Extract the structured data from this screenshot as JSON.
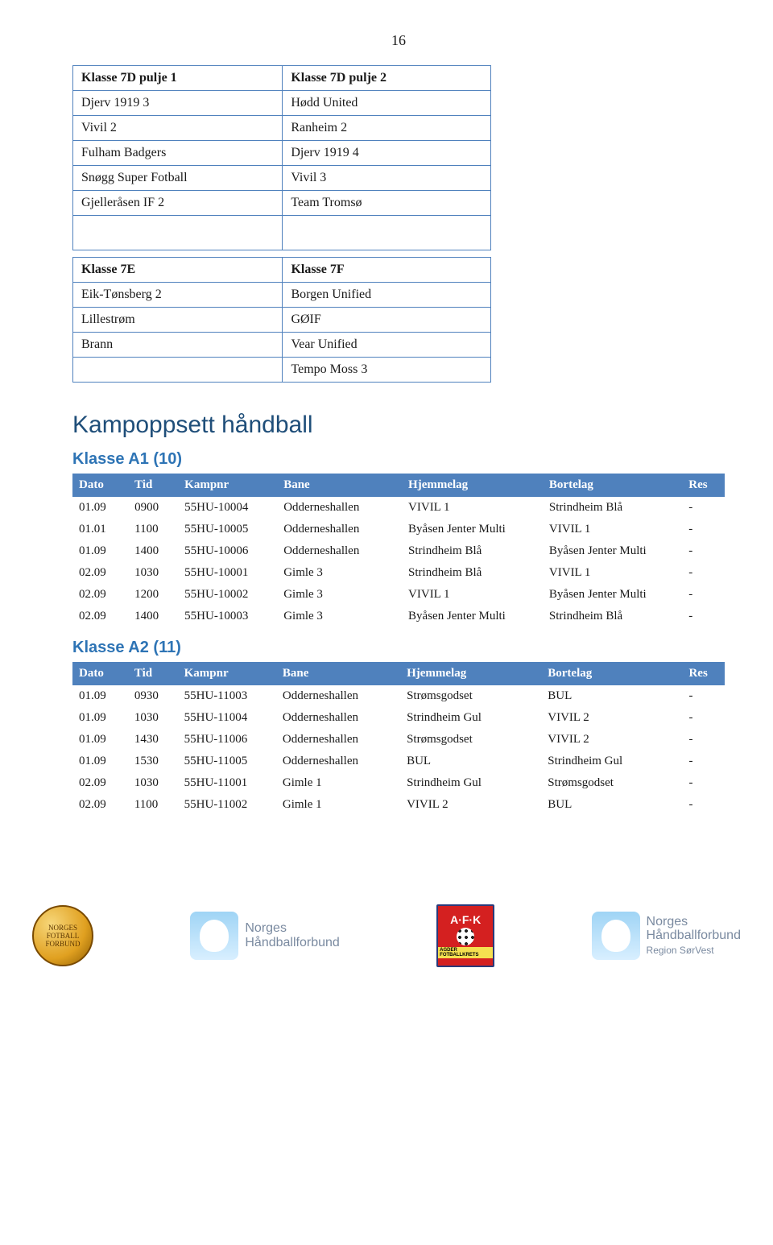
{
  "page_number": "16",
  "groups_top": {
    "left": {
      "header": "Klasse 7D pulje 1",
      "rows": [
        "Djerv 1919 3",
        "Vivil 2",
        "Fulham Badgers",
        "Snøgg Super Fotball",
        "Gjelleråsen IF 2"
      ]
    },
    "right": {
      "header": "Klasse 7D pulje 2",
      "rows": [
        "Hødd United",
        "Ranheim 2",
        "Djerv 1919  4",
        "Vivil 3",
        "Team Tromsø"
      ]
    }
  },
  "groups_bottom": {
    "left": {
      "header": "Klasse 7E",
      "rows": [
        "Eik-Tønsberg 2",
        "Lillestrøm",
        "Brann",
        ""
      ]
    },
    "right": {
      "header": "Klasse 7F",
      "rows": [
        "Borgen Unified",
        "GØIF",
        "Vear Unified",
        "Tempo Moss 3"
      ]
    }
  },
  "section_title": "Kampoppsett håndball",
  "sched_headers": {
    "dato": "Dato",
    "tid": "Tid",
    "kampnr": "Kampnr",
    "bane": "Bane",
    "hjemmelag": "Hjemmelag",
    "bortelag": "Bortelag",
    "res": "Res"
  },
  "klasse_a1": {
    "title": "Klasse A1 (10)",
    "rows": [
      {
        "dato": "01.09",
        "tid": "0900",
        "kamp": "55HU-10004",
        "bane": "Odderneshallen",
        "hj": "VIVIL 1",
        "bo": "Strindheim Blå",
        "res": "-"
      },
      {
        "dato": "01.01",
        "tid": "1100",
        "kamp": "55HU-10005",
        "bane": "Odderneshallen",
        "hj": "Byåsen Jenter Multi",
        "bo": "VIVIL 1",
        "res": "-"
      },
      {
        "dato": "01.09",
        "tid": "1400",
        "kamp": "55HU-10006",
        "bane": "Odderneshallen",
        "hj": "Strindheim Blå",
        "bo": "Byåsen Jenter Multi",
        "res": "-"
      },
      {
        "dato": "02.09",
        "tid": "1030",
        "kamp": "55HU-10001",
        "bane": "Gimle 3",
        "hj": "Strindheim Blå",
        "bo": "VIVIL 1",
        "res": "-"
      },
      {
        "dato": "02.09",
        "tid": "1200",
        "kamp": "55HU-10002",
        "bane": "Gimle 3",
        "hj": "VIVIL 1",
        "bo": "Byåsen Jenter Multi",
        "res": "-"
      },
      {
        "dato": "02.09",
        "tid": "1400",
        "kamp": "55HU-10003",
        "bane": "Gimle 3",
        "hj": "Byåsen Jenter Multi",
        "bo": "Strindheim Blå",
        "res": "-"
      }
    ]
  },
  "klasse_a2": {
    "title": "Klasse A2 (11)",
    "rows": [
      {
        "dato": "01.09",
        "tid": "0930",
        "kamp": "55HU-11003",
        "bane": "Odderneshallen",
        "hj": "Strømsgodset",
        "bo": "BUL",
        "res": "-"
      },
      {
        "dato": "01.09",
        "tid": "1030",
        "kamp": "55HU-11004",
        "bane": "Odderneshallen",
        "hj": "Strindheim Gul",
        "bo": "VIVIL 2",
        "res": "-"
      },
      {
        "dato": "01.09",
        "tid": "1430",
        "kamp": "55HU-11006",
        "bane": "Odderneshallen",
        "hj": "Strømsgodset",
        "bo": "VIVIL 2",
        "res": "-"
      },
      {
        "dato": "01.09",
        "tid": "1530",
        "kamp": "55HU-11005",
        "bane": "Odderneshallen",
        "hj": "BUL",
        "bo": "Strindheim Gul",
        "res": "-"
      },
      {
        "dato": "02.09",
        "tid": "1030",
        "kamp": "55HU-11001",
        "bane": "Gimle 1",
        "hj": "Strindheim Gul",
        "bo": "Strømsgodset",
        "res": "-"
      },
      {
        "dato": "02.09",
        "tid": "1100",
        "kamp": "55HU-11002",
        "bane": "Gimle 1",
        "hj": "VIVIL 2",
        "bo": "BUL",
        "res": "-"
      }
    ]
  },
  "footer": {
    "nhf_label": "Norges\nHåndballforbund",
    "nhf_region": "Region SørVest",
    "afk_label": "A·F·K",
    "afk_sub": "AGDER FOTBALLKRETS"
  },
  "colors": {
    "table_border": "#4f81bd",
    "header_bg": "#4f81bd",
    "header_fg": "#ffffff",
    "section_title": "#1f4e79",
    "klasse_title": "#2e74b5",
    "background": "#ffffff"
  },
  "fontsizes": {
    "body": 16,
    "page_number": 18,
    "section_title": 30,
    "klasse_title": 20,
    "sched": 15
  }
}
